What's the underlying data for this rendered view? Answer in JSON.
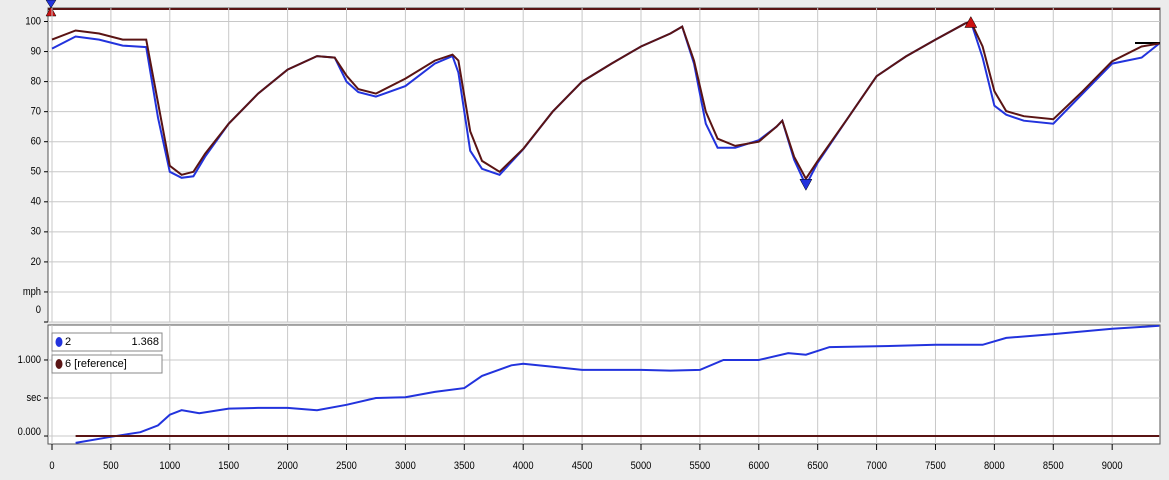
{
  "chart_data": [
    {
      "type": "line",
      "x": [
        0,
        200,
        400,
        600,
        800,
        900,
        1000,
        1100,
        1200,
        1300,
        1500,
        1750,
        2000,
        2250,
        2400,
        2500,
        2600,
        2750,
        3000,
        3250,
        3400,
        3450,
        3550,
        3650,
        3800,
        4000,
        4250,
        4500,
        4750,
        5000,
        5250,
        5350,
        5450,
        5550,
        5650,
        5800,
        6000,
        6150,
        6200,
        6300,
        6400,
        6500,
        6750,
        7000,
        7250,
        7500,
        7750,
        7800,
        7900,
        8000,
        8100,
        8250,
        8500,
        8750,
        9000,
        9250,
        9400
      ],
      "series": [
        {
          "name": "2",
          "color": "#2233dd",
          "values": [
            91,
            95,
            94,
            92,
            91.5,
            68,
            50,
            48,
            48.5,
            55,
            66,
            76,
            84,
            88.5,
            88,
            80,
            76.5,
            75,
            78.5,
            86,
            88.5,
            83,
            57,
            51,
            49,
            57.5,
            70,
            80,
            86,
            91.7,
            96,
            98.3,
            86,
            66,
            58,
            58,
            60.5,
            65,
            67,
            54,
            45.5,
            53,
            67.5,
            81.8,
            88.4,
            94,
            99.3,
            100,
            88,
            72,
            69,
            67,
            66,
            76,
            86,
            88,
            92.7
          ]
        },
        {
          "name": "6 [reference]",
          "color": "#5a1414",
          "values": [
            94,
            97,
            96,
            94,
            94,
            73,
            52,
            49,
            50,
            56,
            66,
            76,
            84,
            88.5,
            88,
            82,
            77.5,
            76,
            81,
            87,
            89,
            87,
            63.5,
            53.6,
            50,
            57.6,
            70,
            80,
            86,
            91.7,
            96,
            98.3,
            87,
            70,
            61,
            58.6,
            60,
            65,
            67,
            55,
            47.7,
            53.6,
            67.5,
            81.8,
            88.4,
            94,
            99.3,
            100,
            91.7,
            76.8,
            70.2,
            68.5,
            67.5,
            76.8,
            86.8,
            91.7,
            92.7
          ]
        }
      ],
      "markers": [
        {
          "x": 6400,
          "y": 45.5,
          "color": "#2233dd",
          "shape": "down"
        },
        {
          "x": 7800,
          "y": 100,
          "color": "#cc1111",
          "shape": "up"
        }
      ],
      "xlim": [
        -34,
        9406
      ],
      "xticks": [
        0,
        500,
        1000,
        1500,
        2000,
        2500,
        3000,
        3500,
        4000,
        4500,
        5000,
        5500,
        6000,
        6500,
        7000,
        7500,
        8000,
        8500,
        9000
      ],
      "ylim": [
        0,
        104.5
      ],
      "yticks": [
        0,
        {
          "value": 10,
          "label": "mph"
        },
        20,
        30,
        40,
        50,
        60,
        70,
        80,
        90,
        100
      ],
      "grid": true
    },
    {
      "type": "line",
      "x": [
        200,
        500,
        750,
        900,
        1000,
        1100,
        1250,
        1500,
        1750,
        2000,
        2250,
        2500,
        2750,
        3000,
        3250,
        3500,
        3650,
        3900,
        4000,
        4250,
        4500,
        5000,
        5250,
        5500,
        5700,
        6000,
        6250,
        6400,
        6600,
        7000,
        7500,
        7900,
        8100,
        8500,
        9000,
        9400
      ],
      "series": [
        {
          "name": "2",
          "color": "#2233dd",
          "legend_value": 1.368,
          "values": [
            -0.09,
            -0.01,
            0.05,
            0.14,
            0.28,
            0.34,
            0.3,
            0.36,
            0.37,
            0.37,
            0.34,
            0.41,
            0.5,
            0.51,
            0.58,
            0.63,
            0.79,
            0.93,
            0.95,
            0.91,
            0.87,
            0.87,
            0.86,
            0.87,
            1.0,
            1.0,
            1.09,
            1.07,
            1.17,
            1.18,
            1.2,
            1.2,
            1.29,
            1.34,
            1.41,
            1.45
          ]
        },
        {
          "name": "6 [reference]",
          "color": "#5a1414",
          "values": [
            0,
            0,
            0,
            0,
            0,
            0,
            0,
            0,
            0,
            0,
            0,
            0,
            0,
            0,
            0,
            0,
            0,
            0,
            0,
            0,
            0,
            0,
            0,
            0,
            0,
            0,
            0,
            0,
            0,
            0,
            0,
            0,
            0,
            0,
            0,
            0
          ]
        }
      ],
      "xlim": [
        -34,
        9406
      ],
      "xticks": [
        0,
        500,
        1000,
        1500,
        2000,
        2500,
        3000,
        3500,
        4000,
        4500,
        5000,
        5500,
        6000,
        6500,
        7000,
        7500,
        8000,
        8500,
        9000
      ],
      "ylim": [
        -0.105,
        1.46
      ],
      "yticks": [
        {
          "value": 0,
          "label": "0.000"
        },
        {
          "value": 0.5,
          "label": "sec"
        },
        {
          "value": 1,
          "label": "1.000"
        }
      ],
      "grid": true
    }
  ]
}
